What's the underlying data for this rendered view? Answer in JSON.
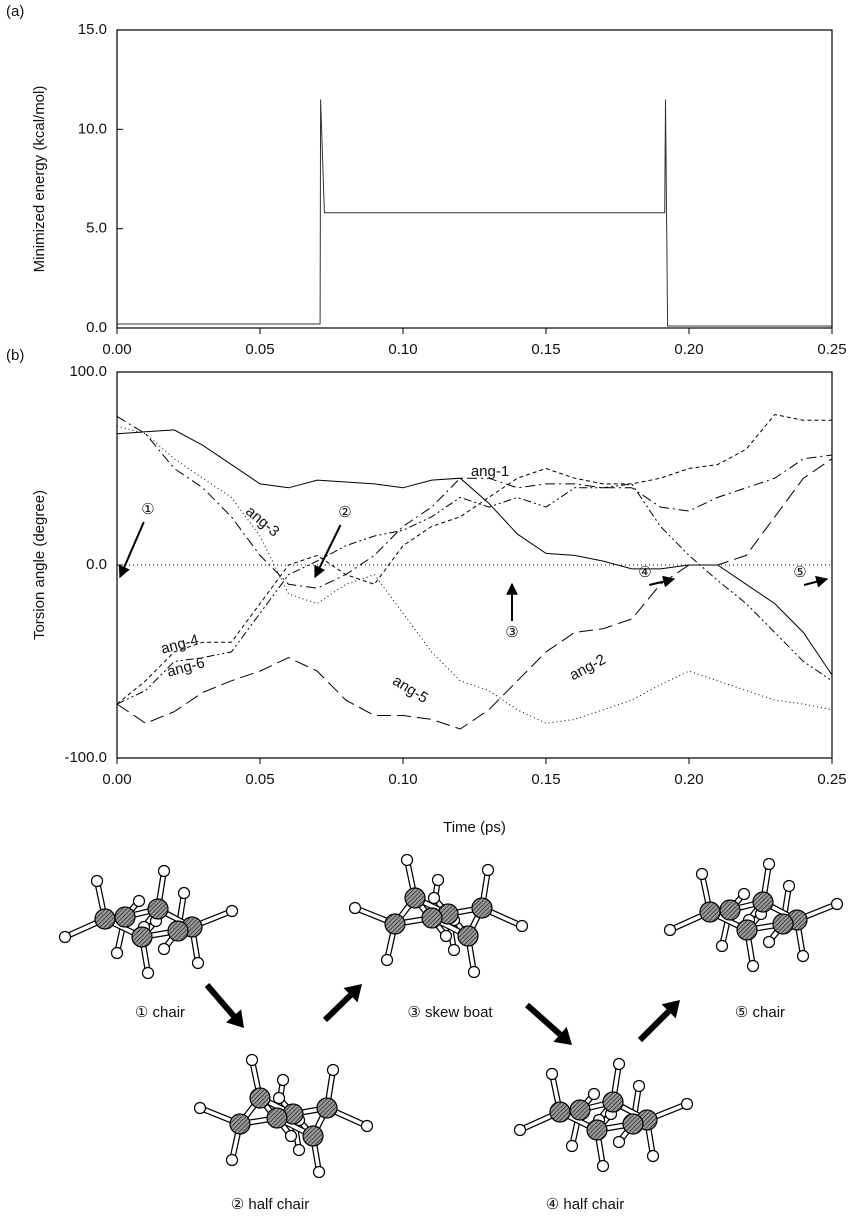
{
  "chart_data": [
    {
      "type": "line",
      "panel": "(a)",
      "y_label": "Minimized energy (kcal/mol)",
      "x": [
        0,
        0.071,
        0.0712,
        0.0725,
        0.1915,
        0.1918,
        0.1925,
        0.25
      ],
      "values": [
        0.2,
        0.2,
        11.5,
        5.8,
        5.8,
        11.5,
        0.1,
        0.1
      ],
      "color": "#333333",
      "xlim": [
        0,
        0.25
      ],
      "ylim": [
        0,
        15
      ],
      "xticks": [
        {
          "value": 0,
          "label": "0.00"
        },
        {
          "value": 0.05,
          "label": "0.05"
        },
        {
          "value": 0.1,
          "label": "0.10"
        },
        {
          "value": 0.15,
          "label": "0.15"
        },
        {
          "value": 0.2,
          "label": "0.20"
        },
        {
          "value": 0.25,
          "label": "0.25"
        }
      ],
      "yticks": [
        {
          "value": 0,
          "label": "0.0"
        },
        {
          "value": 5,
          "label": "5.0"
        },
        {
          "value": 10,
          "label": "10.0"
        },
        {
          "value": 15,
          "label": "15.0"
        }
      ]
    },
    {
      "type": "line",
      "panel": "(b)",
      "y_label": "Torsion angle (degree)",
      "x_label": "Time (ps)",
      "x": [
        0,
        0.01,
        0.02,
        0.03,
        0.04,
        0.05,
        0.06,
        0.07,
        0.08,
        0.09,
        0.1,
        0.11,
        0.12,
        0.13,
        0.14,
        0.15,
        0.16,
        0.17,
        0.18,
        0.19,
        0.2,
        0.21,
        0.22,
        0.23,
        0.24,
        0.25
      ],
      "series": [
        {
          "name": "ang-1",
          "color": "#000000",
          "dash": "none",
          "values": [
            68,
            69,
            70,
            62,
            52,
            42,
            40,
            44,
            43,
            42,
            40,
            44,
            45,
            32,
            16,
            6,
            5,
            2,
            -2,
            -2,
            0,
            0,
            -10,
            -20,
            -35,
            -57
          ]
        },
        {
          "name": "ang-2",
          "color": "#000000",
          "dash": "14,6",
          "values": [
            -72,
            -82,
            -76,
            -66,
            -60,
            -55,
            -48,
            -55,
            -70,
            -78,
            -78,
            -80,
            -85,
            -75,
            -60,
            -45,
            -35,
            -33,
            -28,
            -10,
            0,
            0,
            5,
            25,
            45,
            55
          ]
        },
        {
          "name": "ang-3",
          "color": "#000000",
          "dash": "10,4,2,4",
          "values": [
            77,
            68,
            50,
            40,
            25,
            5,
            -10,
            -12,
            -5,
            5,
            20,
            30,
            45,
            45,
            40,
            42,
            42,
            40,
            40,
            30,
            28,
            35,
            40,
            45,
            55,
            57
          ]
        },
        {
          "name": "ang-4",
          "color": "#000000",
          "dash": "4,3",
          "values": [
            -72,
            -60,
            -45,
            -40,
            -40,
            -20,
            0,
            5,
            -5,
            -10,
            10,
            20,
            25,
            35,
            45,
            50,
            45,
            42,
            42,
            45,
            50,
            52,
            60,
            78,
            75,
            75
          ]
        },
        {
          "name": "ang-5",
          "color": "#000000",
          "dash": "1,3",
          "values": [
            72,
            68,
            55,
            45,
            35,
            15,
            -15,
            -20,
            -10,
            -5,
            -25,
            -45,
            -60,
            -65,
            -75,
            -82,
            -80,
            -75,
            -70,
            -62,
            -55,
            -60,
            -65,
            -70,
            -72,
            -75
          ]
        },
        {
          "name": "ang-6",
          "color": "#000000",
          "dash": "8,3,2,3,2,3",
          "values": [
            -72,
            -65,
            -50,
            -48,
            -45,
            -25,
            -5,
            2,
            10,
            15,
            18,
            25,
            35,
            30,
            35,
            30,
            40,
            40,
            42,
            20,
            5,
            -8,
            -20,
            -35,
            -50,
            -60
          ]
        }
      ],
      "annotations": [
        "①",
        "②",
        "③",
        "④",
        "⑤"
      ],
      "zero_line": true,
      "xlim": [
        0,
        0.25
      ],
      "ylim": [
        -100,
        100
      ],
      "xticks": [
        {
          "value": 0,
          "label": "0.00"
        },
        {
          "value": 0.05,
          "label": "0.05"
        },
        {
          "value": 0.1,
          "label": "0.10"
        },
        {
          "value": 0.15,
          "label": "0.15"
        },
        {
          "value": 0.2,
          "label": "0.20"
        },
        {
          "value": 0.25,
          "label": "0.25"
        }
      ],
      "yticks": [
        {
          "value": -100,
          "label": "-100.0"
        },
        {
          "value": 0,
          "label": "0.0"
        },
        {
          "value": 100,
          "label": "100.0"
        }
      ]
    }
  ],
  "figure": {
    "conformers": [
      "① chair",
      "② half chair",
      "③ skew boat",
      "④ half chair",
      "⑤ chair"
    ]
  }
}
